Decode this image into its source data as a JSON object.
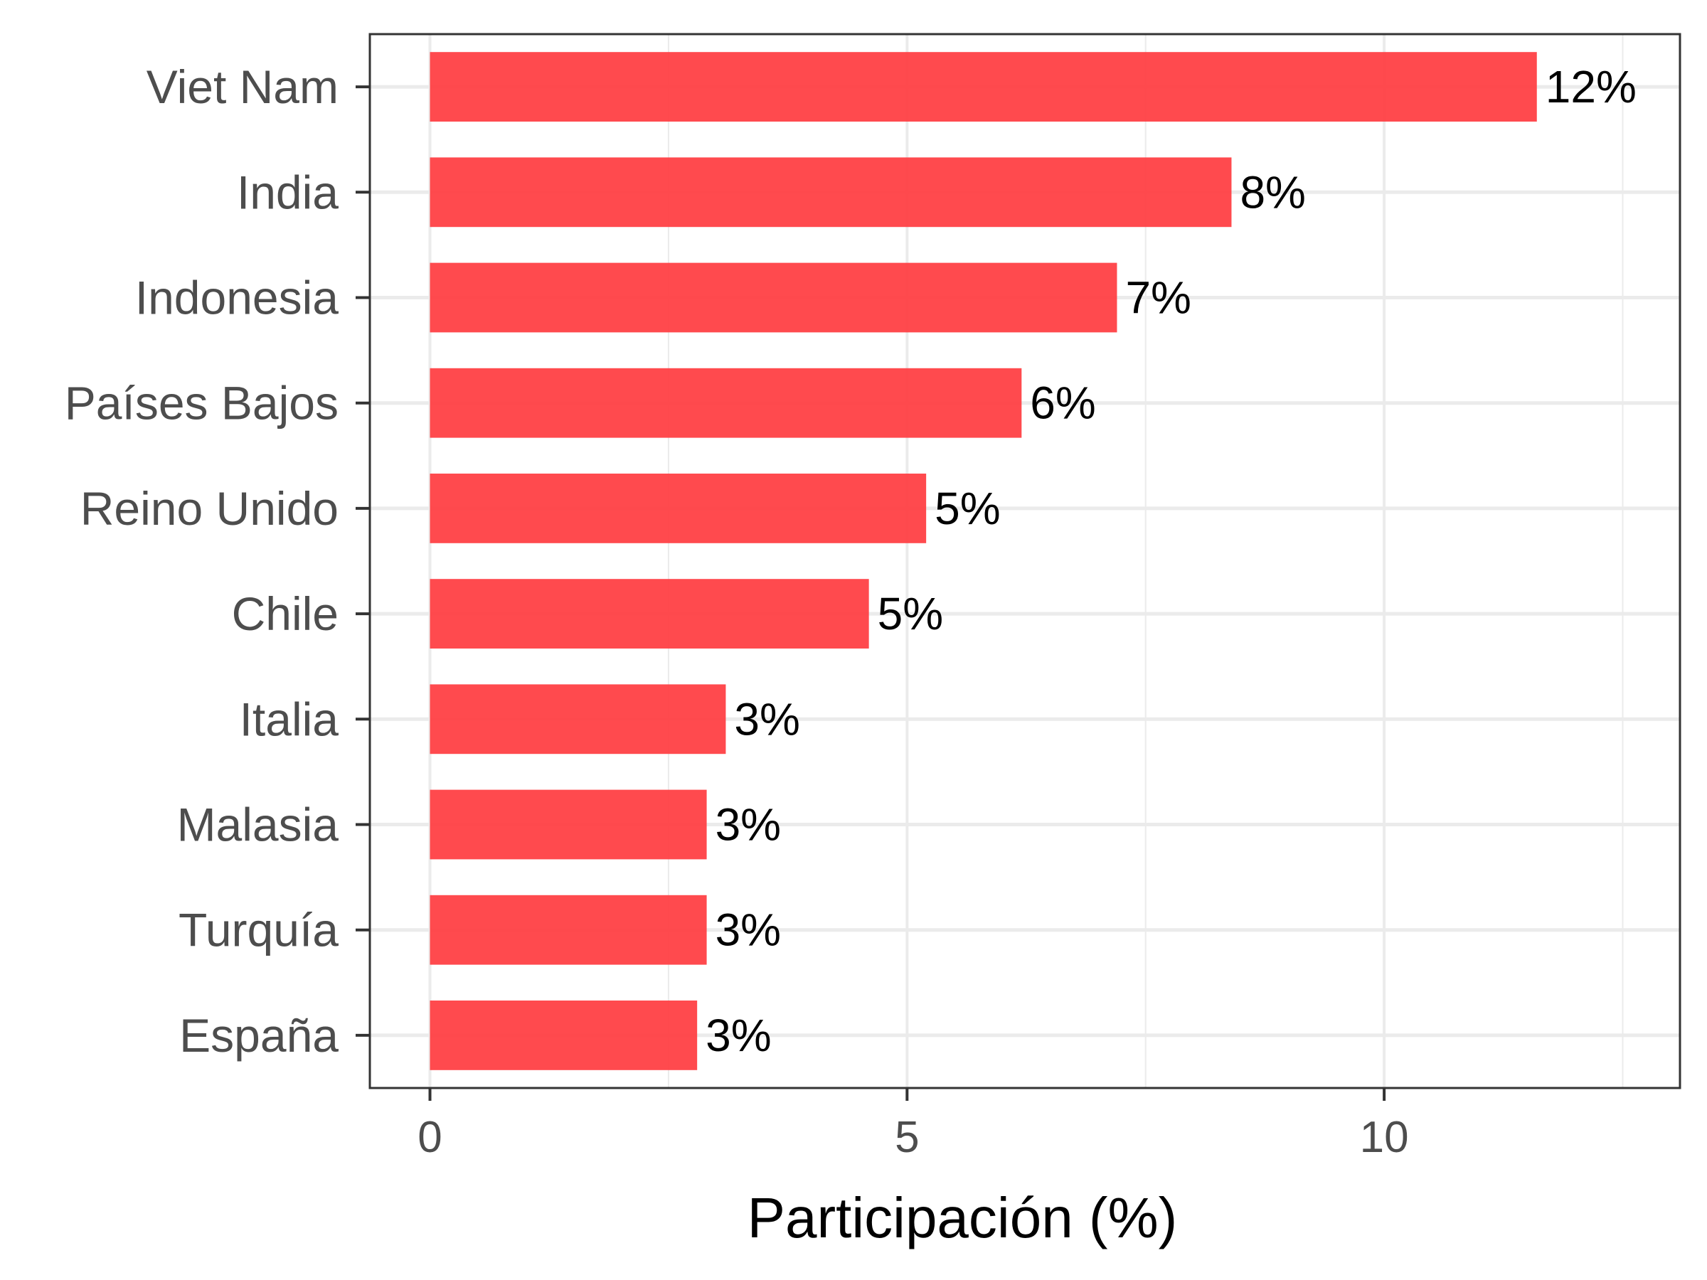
{
  "chart_data": {
    "type": "bar",
    "orientation": "horizontal",
    "categories": [
      "Viet Nam",
      "India",
      "Indonesia",
      "Países Bajos",
      "Reino Unido",
      "Chile",
      "Italia",
      "Malasia",
      "Turquía",
      "España"
    ],
    "values": [
      11.6,
      8.4,
      7.2,
      6.2,
      5.2,
      4.6,
      3.1,
      2.9,
      2.9,
      2.8
    ],
    "value_labels": [
      "12%",
      "8%",
      "7%",
      "6%",
      "5%",
      "5%",
      "3%",
      "3%",
      "3%",
      "3%"
    ],
    "xlabel": "Participación (%)",
    "ylabel": "",
    "xlim": [
      -0.63,
      13.1
    ],
    "x_ticks": [
      0,
      5,
      10
    ],
    "x_tick_labels": [
      "0",
      "5",
      "10"
    ],
    "grid": true,
    "bar_color": "#FF3B3F",
    "panel_border_color": "#333333",
    "grid_color": "#EBEBEB"
  }
}
